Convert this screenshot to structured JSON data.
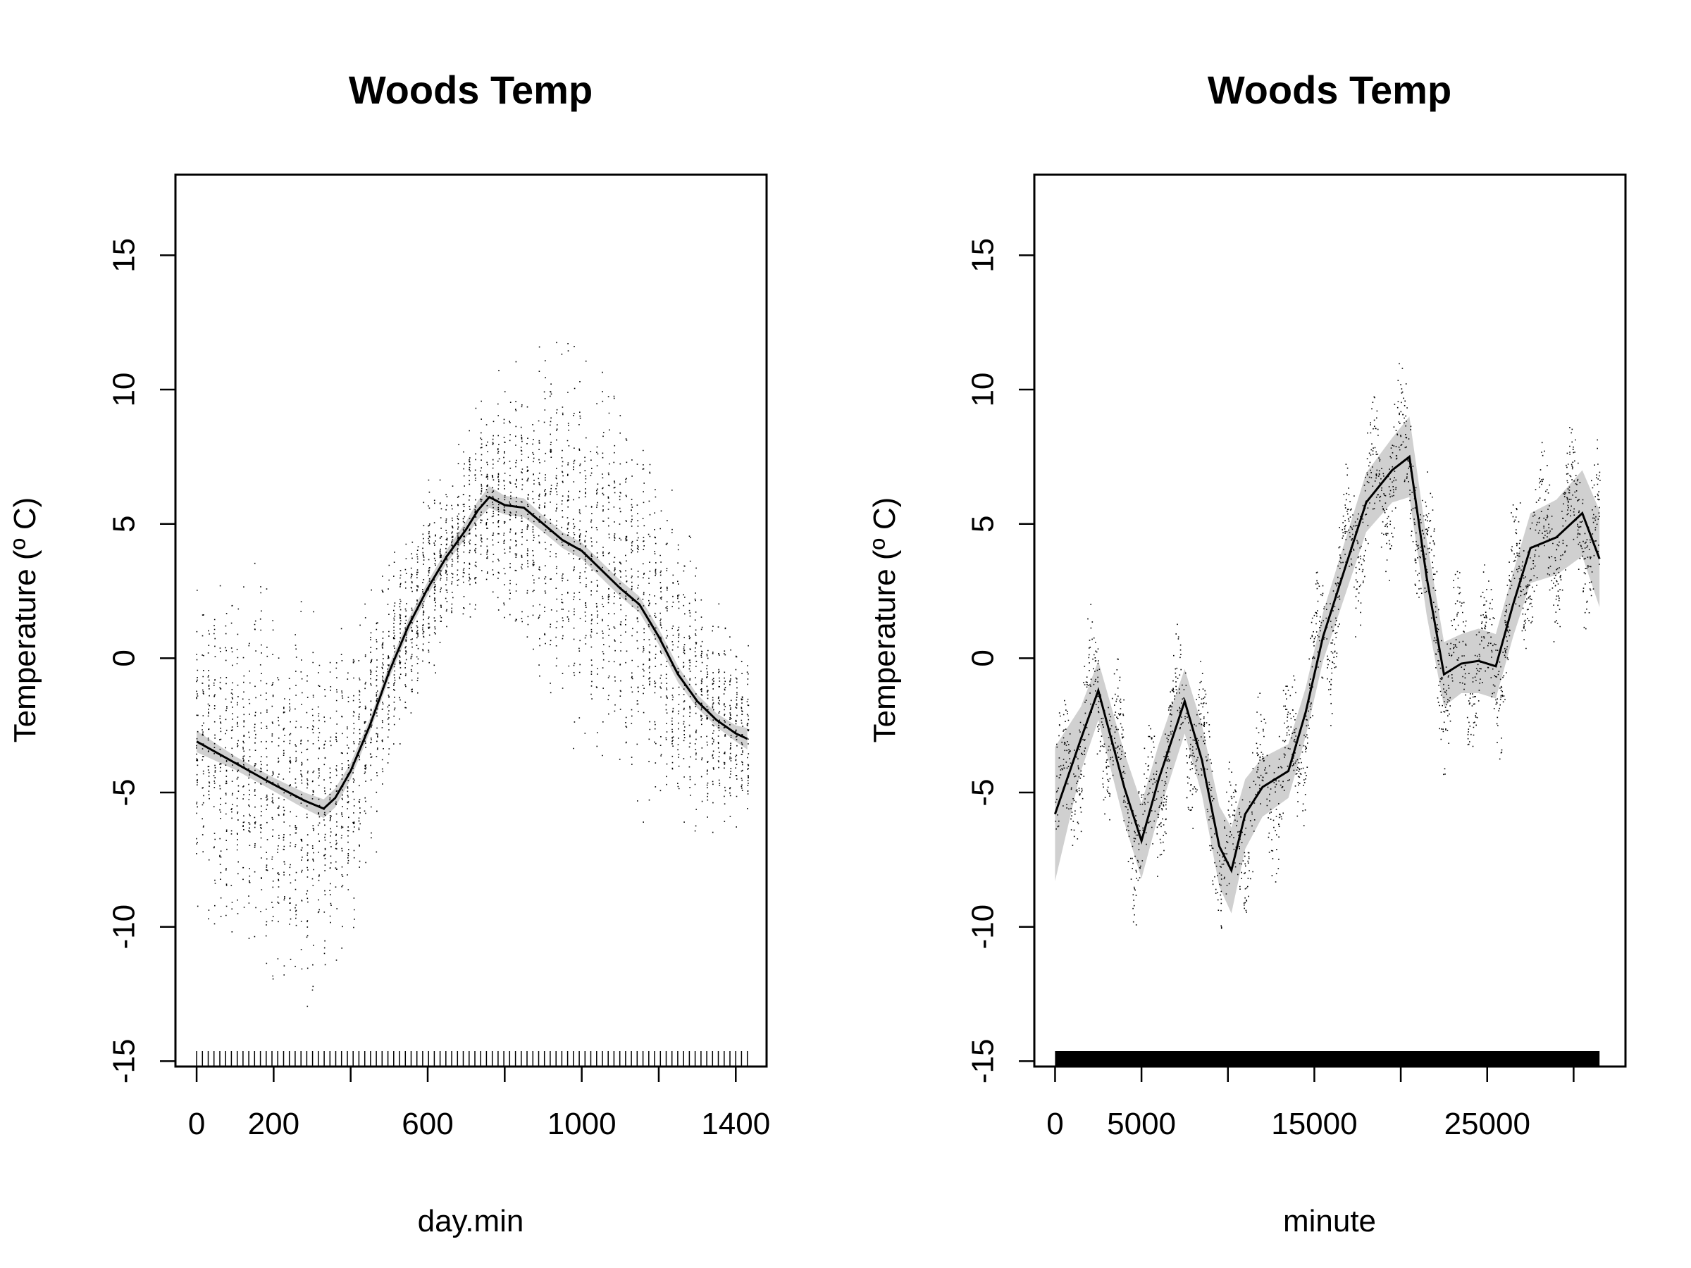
{
  "chart_data": [
    {
      "type": "scatter",
      "title": "Woods Temp",
      "xlabel": "day.min",
      "ylabel": "Temperature (º C)",
      "xlim": [
        -55,
        1480
      ],
      "ylim": [
        -15.2,
        18
      ],
      "xticks": [
        0,
        200,
        400,
        600,
        800,
        1000,
        1200,
        1400
      ],
      "xtick_labels": [
        "0",
        "200",
        "",
        "600",
        "",
        "1000",
        "",
        "1400"
      ],
      "yticks": [
        -15,
        -10,
        -5,
        0,
        5,
        10,
        15
      ],
      "ytick_labels": [
        "-15",
        "-10",
        "-5",
        "0",
        "5",
        "10",
        "15"
      ],
      "grid": false,
      "rug": "bottom",
      "smooth_fit": {
        "x": [
          0,
          100,
          200,
          280,
          330,
          360,
          400,
          450,
          500,
          550,
          600,
          650,
          700,
          730,
          760,
          800,
          850,
          900,
          950,
          1000,
          1050,
          1100,
          1150,
          1200,
          1250,
          1300,
          1350,
          1400,
          1430
        ],
        "y": [
          -3.1,
          -3.9,
          -4.7,
          -5.3,
          -5.6,
          -5.2,
          -4.2,
          -2.5,
          -0.5,
          1.2,
          2.6,
          3.8,
          4.8,
          5.5,
          6.0,
          5.7,
          5.6,
          5.0,
          4.4,
          4.0,
          3.3,
          2.6,
          2.0,
          0.8,
          -0.6,
          -1.6,
          -2.3,
          -2.8,
          -3.0
        ]
      },
      "smooth_band_halfwidth": [
        0.4,
        0.25,
        0.25,
        0.3,
        0.35,
        0.35,
        0.3,
        0.25,
        0.25,
        0.25,
        0.25,
        0.25,
        0.3,
        0.35,
        0.4,
        0.35,
        0.35,
        0.3,
        0.3,
        0.3,
        0.3,
        0.3,
        0.3,
        0.3,
        0.3,
        0.25,
        0.25,
        0.3,
        0.4
      ]
    },
    {
      "type": "scatter",
      "title": "Woods Temp",
      "xlabel": "minute",
      "ylabel": "Temperature (º C)",
      "xlim": [
        -1200,
        33000
      ],
      "ylim": [
        -15.2,
        18
      ],
      "xticks": [
        0,
        5000,
        10000,
        15000,
        20000,
        25000,
        30000
      ],
      "xtick_labels": [
        "0",
        "5000",
        "",
        "15000",
        "",
        "25000",
        ""
      ],
      "yticks": [
        -15,
        -10,
        -5,
        0,
        5,
        10,
        15
      ],
      "ytick_labels": [
        "-15",
        "-10",
        "-5",
        "0",
        "5",
        "10",
        "15"
      ],
      "grid": false,
      "rug": "bottom",
      "smooth_fit": {
        "x": [
          0,
          1500,
          2500,
          4000,
          5000,
          6000,
          7500,
          8500,
          9500,
          10200,
          11000,
          12000,
          13500,
          14500,
          15500,
          16500,
          18000,
          19500,
          20500,
          21500,
          22500,
          23500,
          24500,
          25500,
          26500,
          27500,
          29000,
          30500,
          31500
        ],
        "y": [
          -5.8,
          -3.0,
          -1.2,
          -4.8,
          -6.8,
          -4.5,
          -1.6,
          -3.8,
          -7.0,
          -7.9,
          -5.8,
          -4.8,
          -4.2,
          -2.0,
          0.8,
          2.8,
          5.8,
          7.0,
          7.5,
          3.0,
          -0.6,
          -0.2,
          -0.1,
          -0.3,
          2.0,
          4.1,
          4.5,
          5.4,
          3.7
        ]
      },
      "smooth_band_halfwidth": [
        2.5,
        1.2,
        1.1,
        1.3,
        1.4,
        1.3,
        1.2,
        1.3,
        1.5,
        1.6,
        1.3,
        1.1,
        1.0,
        0.9,
        0.9,
        1.0,
        1.1,
        1.2,
        1.5,
        1.4,
        1.2,
        1.1,
        1.2,
        1.2,
        1.2,
        1.3,
        1.4,
        1.6,
        1.8
      ]
    }
  ]
}
